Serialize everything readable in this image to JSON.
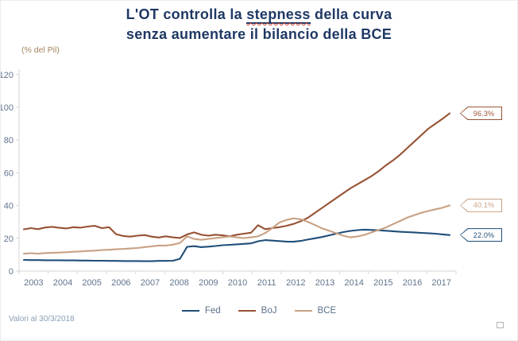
{
  "title": {
    "line1_pre": "L'OT controlla la ",
    "line1_underlined": "stepness",
    "line1_post": " della curva",
    "line2": "senza aumentare il bilancio della BCE"
  },
  "footer": {
    "note": "Valori al 30/3/2018"
  },
  "colors": {
    "title_navy": "#1f3864",
    "axis_text": "#61758d",
    "axis_line": "#d6d6d6",
    "footer_text": "#8ba0b5",
    "ylabel_text": "#a5835e"
  },
  "chart_data": {
    "type": "line",
    "title": "L'OT controlla la stepness della curva senza aumentare il bilancio della BCE",
    "ylabel": "(% del Pil)",
    "xlabel": "",
    "ylim": [
      0,
      120
    ],
    "yticks": [
      0,
      20,
      40,
      60,
      80,
      100,
      120
    ],
    "grid": false,
    "legend_position": "bottom",
    "x_tick_labels": [
      "2003",
      "2004",
      "2005",
      "2006",
      "2007",
      "2008",
      "2009",
      "2010",
      "2011",
      "2012",
      "2013",
      "2014",
      "2015",
      "2016",
      "2017"
    ],
    "x_start": 2003.0,
    "x_step_years": 0.25,
    "x_end": 2018.0,
    "series": [
      {
        "name": "Fed",
        "color": "#1f4e79",
        "end_label": "22.0%",
        "values": [
          6.8,
          6.7,
          6.7,
          6.6,
          6.6,
          6.6,
          6.5,
          6.5,
          6.4,
          6.4,
          6.3,
          6.3,
          6.2,
          6.2,
          6.1,
          6.1,
          6.1,
          6.0,
          6.0,
          6.2,
          6.2,
          6.3,
          7.5,
          14.8,
          15.2,
          14.6,
          14.9,
          15.3,
          15.8,
          16.0,
          16.3,
          16.6,
          16.9,
          18.2,
          18.9,
          18.6,
          18.3,
          18.0,
          17.9,
          18.4,
          19.2,
          20.0,
          20.8,
          21.8,
          22.8,
          23.8,
          24.5,
          25.0,
          25.3,
          25.1,
          24.9,
          24.6,
          24.3,
          24.0,
          23.8,
          23.6,
          23.3,
          23.1,
          22.8,
          22.4,
          22.0
        ]
      },
      {
        "name": "BoJ",
        "color": "#975233",
        "end_label": "96.3%",
        "values": [
          25.5,
          26.2,
          25.6,
          26.6,
          27.0,
          26.4,
          26.0,
          26.8,
          26.5,
          27.2,
          27.6,
          26.2,
          26.8,
          22.5,
          21.4,
          21.0,
          21.6,
          22.0,
          21.0,
          20.5,
          21.2,
          20.6,
          20.2,
          22.4,
          23.6,
          22.2,
          21.6,
          22.2,
          21.8,
          21.2,
          22.2,
          22.8,
          23.4,
          28.0,
          25.6,
          26.2,
          26.8,
          27.6,
          28.8,
          30.4,
          32.5,
          35.5,
          38.5,
          41.5,
          44.5,
          47.5,
          50.5,
          53.0,
          55.5,
          58.0,
          61.0,
          64.5,
          67.5,
          71.0,
          75.0,
          79.0,
          83.0,
          87.0,
          90.0,
          93.0,
          96.3
        ]
      },
      {
        "name": "BCE",
        "color": "#c9a183",
        "end_label": "40.1%",
        "values": [
          10.6,
          10.9,
          10.6,
          11.0,
          11.1,
          11.3,
          11.5,
          11.8,
          12.0,
          12.3,
          12.5,
          12.8,
          13.0,
          13.3,
          13.5,
          13.8,
          14.1,
          14.6,
          15.1,
          15.6,
          15.6,
          16.1,
          17.2,
          21.2,
          19.6,
          19.1,
          19.6,
          20.1,
          20.6,
          21.1,
          20.6,
          20.1,
          20.6,
          21.2,
          23.2,
          26.2,
          29.6,
          31.2,
          32.2,
          31.6,
          30.1,
          28.1,
          26.1,
          24.6,
          23.1,
          21.6,
          20.6,
          21.1,
          22.1,
          23.6,
          25.1,
          26.6,
          28.6,
          30.6,
          32.6,
          34.1,
          35.6,
          36.7,
          37.7,
          38.7,
          40.1
        ]
      }
    ]
  }
}
